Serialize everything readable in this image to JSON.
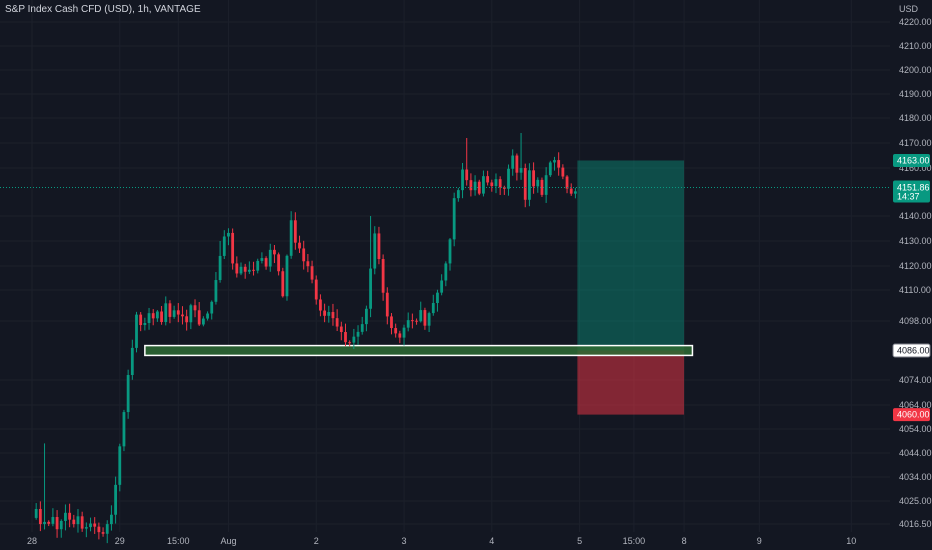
{
  "chart_data": {
    "type": "candlestick",
    "title": "S&P Index Cash CFD (USD), 1h, VANTAGE",
    "currency": "USD",
    "ylim": [
      4012,
      4226
    ],
    "y_ticks": [
      4220.0,
      4210.0,
      4200.0,
      4190.0,
      4180.0,
      4170.0,
      4160.0,
      4140.0,
      4130.0,
      4120.0,
      4110.0,
      4098.0,
      4074.0,
      4064.0,
      4054.0,
      4044.0,
      4034.0,
      4025.0,
      4016.5
    ],
    "x_ticks": [
      {
        "label": "28",
        "bar": 0
      },
      {
        "label": "29",
        "bar": 21
      },
      {
        "label": "15:00",
        "bar": 35
      },
      {
        "label": "Aug",
        "bar": 47
      },
      {
        "label": "2",
        "bar": 68
      },
      {
        "label": "3",
        "bar": 89
      },
      {
        "label": "4",
        "bar": 110
      },
      {
        "label": "5",
        "bar": 131
      },
      {
        "label": "15:00",
        "bar": 144
      },
      {
        "label": "8",
        "bar": 156
      },
      {
        "label": "9",
        "bar": 174
      },
      {
        "label": "10",
        "bar": 196
      }
    ],
    "anchors": [
      [
        0,
        4020
      ],
      [
        1,
        4021
      ],
      [
        2,
        4017
      ],
      [
        3,
        4018
      ],
      [
        4,
        4016
      ],
      [
        5,
        4019
      ],
      [
        6,
        4015
      ],
      [
        7,
        4017
      ],
      [
        8,
        4020
      ],
      [
        9,
        4018
      ],
      [
        10,
        4016
      ],
      [
        11,
        4019
      ],
      [
        12,
        4014
      ],
      [
        13,
        4016
      ],
      [
        14,
        4017
      ],
      [
        15,
        4015
      ],
      [
        16,
        4013
      ],
      [
        17,
        4014
      ],
      [
        18,
        4016
      ],
      [
        19,
        4020
      ],
      [
        20,
        4030
      ],
      [
        21,
        4046
      ],
      [
        22,
        4062
      ],
      [
        23,
        4076
      ],
      [
        24,
        4086
      ],
      [
        25,
        4100
      ],
      [
        26,
        4096
      ],
      [
        27,
        4097
      ],
      [
        28,
        4100
      ],
      [
        29,
        4098
      ],
      [
        30,
        4102
      ],
      [
        31,
        4098
      ],
      [
        32,
        4104
      ],
      [
        33,
        4100
      ],
      [
        34,
        4103
      ],
      [
        35,
        4101
      ],
      [
        36,
        4100
      ],
      [
        37,
        4098
      ],
      [
        38,
        4103
      ],
      [
        39,
        4102
      ],
      [
        40,
        4096
      ],
      [
        41,
        4098
      ],
      [
        42,
        4102
      ],
      [
        43,
        4106
      ],
      [
        44,
        4114
      ],
      [
        45,
        4124
      ],
      [
        46,
        4132
      ],
      [
        47,
        4134
      ],
      [
        48,
        4120
      ],
      [
        49,
        4118
      ],
      [
        50,
        4120
      ],
      [
        51,
        4118
      ],
      [
        52,
        4118
      ],
      [
        53,
        4117
      ],
      [
        54,
        4122
      ],
      [
        55,
        4124
      ],
      [
        56,
        4120
      ],
      [
        57,
        4127
      ],
      [
        58,
        4125
      ],
      [
        59,
        4118
      ],
      [
        60,
        4108
      ],
      [
        61,
        4124
      ],
      [
        62,
        4138
      ],
      [
        63,
        4130
      ],
      [
        64,
        4126
      ],
      [
        65,
        4122
      ],
      [
        66,
        4119
      ],
      [
        67,
        4114
      ],
      [
        68,
        4106
      ],
      [
        69,
        4102
      ],
      [
        70,
        4100
      ],
      [
        71,
        4101
      ],
      [
        72,
        4098
      ],
      [
        73,
        4096
      ],
      [
        74,
        4093
      ],
      [
        75,
        4090
      ],
      [
        76,
        4089
      ],
      [
        77,
        4092
      ],
      [
        78,
        4094
      ],
      [
        79,
        4097
      ],
      [
        80,
        4102
      ],
      [
        81,
        4118
      ],
      [
        82,
        4134
      ],
      [
        83,
        4122
      ],
      [
        84,
        4110
      ],
      [
        85,
        4100
      ],
      [
        86,
        4096
      ],
      [
        87,
        4094
      ],
      [
        88,
        4090
      ],
      [
        89,
        4096
      ],
      [
        90,
        4098
      ],
      [
        91,
        4099
      ],
      [
        92,
        4098
      ],
      [
        93,
        4102
      ],
      [
        94,
        4097
      ],
      [
        95,
        4100
      ],
      [
        96,
        4104
      ],
      [
        97,
        4108
      ],
      [
        98,
        4113
      ],
      [
        99,
        4120
      ],
      [
        100,
        4130
      ],
      [
        101,
        4148
      ],
      [
        102,
        4152
      ],
      [
        103,
        4160
      ],
      [
        104,
        4156
      ],
      [
        105,
        4152
      ],
      [
        106,
        4154
      ],
      [
        107,
        4150
      ],
      [
        108,
        4156
      ],
      [
        109,
        4154
      ],
      [
        110,
        4152
      ],
      [
        111,
        4156
      ],
      [
        112,
        4151
      ],
      [
        113,
        4152
      ],
      [
        114,
        4160
      ],
      [
        115,
        4164
      ],
      [
        116,
        4159
      ],
      [
        117,
        4160
      ],
      [
        118,
        4148
      ],
      [
        119,
        4158
      ],
      [
        120,
        4152
      ],
      [
        121,
        4154
      ],
      [
        122,
        4150
      ],
      [
        123,
        4156
      ],
      [
        124,
        4163
      ],
      [
        125,
        4162
      ],
      [
        126,
        4160
      ],
      [
        127,
        4156
      ],
      [
        128,
        4152
      ],
      [
        129,
        4150
      ],
      [
        130,
        4151
      ]
    ],
    "bar_count": 130,
    "current_price": {
      "value": 4151.86,
      "label": "4151.86",
      "timer": "14:37",
      "color": "#089981"
    },
    "take_profit": {
      "value": 4163.0,
      "label": "4163.00",
      "color": "#089981"
    },
    "entry": {
      "value": 4086.0,
      "label": "4086.00"
    },
    "stop_loss": {
      "value": 4060.0,
      "label": "4060.00",
      "color": "#f23645"
    },
    "position_box": {
      "start_bar": 130,
      "end_bar": 156,
      "type": "long"
    },
    "support_zone": {
      "from": 4084,
      "to": 4088,
      "start_bar": 27,
      "end_bar": 158,
      "color": "#2e6b34"
    },
    "up_color": "#089981",
    "down_color": "#f23645"
  }
}
